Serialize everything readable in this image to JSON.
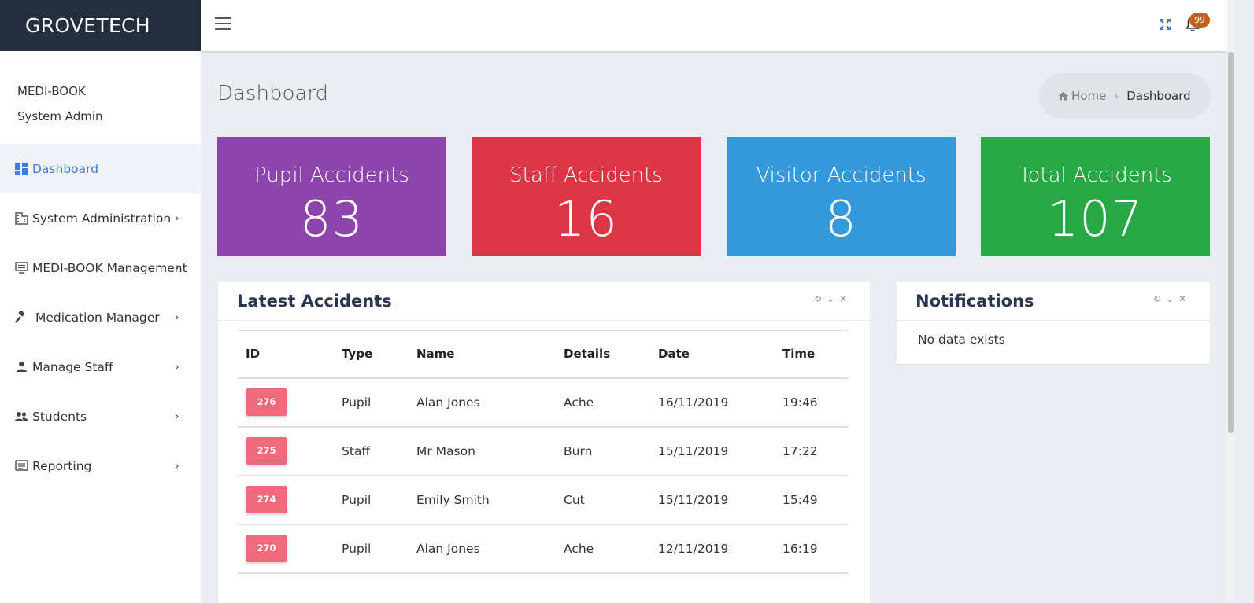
{
  "brand": "GROVETECH",
  "header": {
    "notification_count": "99"
  },
  "user": {
    "org": "MEDI-BOOK",
    "role": "System Admin"
  },
  "sidebar": {
    "items": [
      {
        "label": "Dashboard",
        "icon": "dashboard-icon",
        "active": true
      },
      {
        "label": "System Administration",
        "icon": "building-icon"
      },
      {
        "label": "MEDI-BOOK Management",
        "icon": "monitor-icon"
      },
      {
        "label": "Medication Manager",
        "icon": "gavel-icon"
      },
      {
        "label": "Manage Staff",
        "icon": "person-icon"
      },
      {
        "label": "Students",
        "icon": "people-icon"
      },
      {
        "label": "Reporting",
        "icon": "report-icon"
      }
    ]
  },
  "page": {
    "title": "Dashboard",
    "breadcrumb": {
      "home": "Home",
      "current": "Dashboard"
    }
  },
  "stats": [
    {
      "label": "Pupil Accidents",
      "value": "83",
      "color": "#8e44ad"
    },
    {
      "label": "Staff Accidents",
      "value": "16",
      "color": "#dc3545"
    },
    {
      "label": "Visitor Accidents",
      "value": "8",
      "color": "#3498db"
    },
    {
      "label": "Total Accidents",
      "value": "107",
      "color": "#28a745"
    }
  ],
  "latest_accidents": {
    "title": "Latest Accidents",
    "columns": [
      "ID",
      "Type",
      "Name",
      "Details",
      "Date",
      "Time"
    ],
    "rows": [
      {
        "id": "276",
        "type": "Pupil",
        "name": "Alan Jones",
        "details": "Ache",
        "date": "16/11/2019",
        "time": "19:46"
      },
      {
        "id": "275",
        "type": "Staff",
        "name": "Mr Mason",
        "details": "Burn",
        "date": "15/11/2019",
        "time": "17:22"
      },
      {
        "id": "274",
        "type": "Pupil",
        "name": "Emily Smith",
        "details": "Cut",
        "date": "15/11/2019",
        "time": "15:49"
      },
      {
        "id": "270",
        "type": "Pupil",
        "name": "Alan Jones",
        "details": "Ache",
        "date": "12/11/2019",
        "time": "16:19"
      }
    ]
  },
  "notifications": {
    "title": "Notifications",
    "empty_text": "No data exists"
  }
}
